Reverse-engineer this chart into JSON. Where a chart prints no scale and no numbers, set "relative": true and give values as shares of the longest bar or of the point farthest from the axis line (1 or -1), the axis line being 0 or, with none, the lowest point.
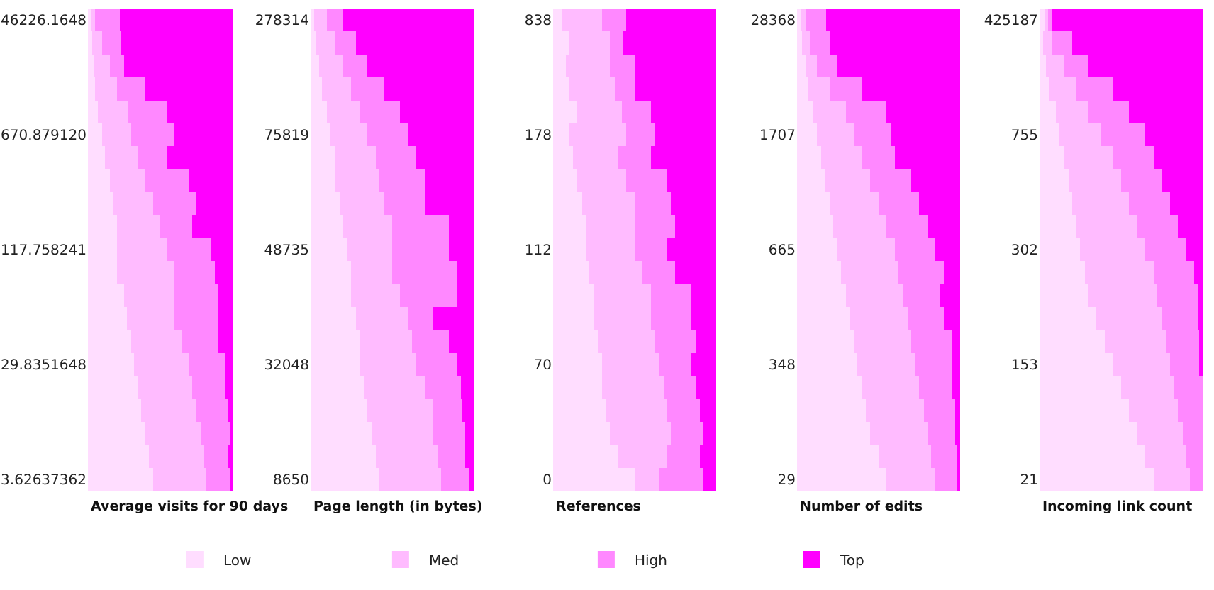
{
  "chart_data": [
    {
      "type": "bar",
      "orientation": "horizontal",
      "stacked": true,
      "relative": true,
      "xlabel": "Average visits for 90 days",
      "legend": "bottom",
      "categories": [
        "46226.1648",
        null,
        null,
        null,
        null,
        "670.879120",
        null,
        null,
        null,
        null,
        "117.758241",
        null,
        null,
        null,
        null,
        "29.8351648",
        null,
        null,
        null,
        null,
        "3.62637362"
      ],
      "series": [
        {
          "name": "Low",
          "color": "#ffddff",
          "values": [
            0.02,
            0.03,
            0.04,
            0.05,
            0.07,
            0.1,
            0.12,
            0.15,
            0.17,
            0.2,
            0.2,
            0.2,
            0.25,
            0.27,
            0.3,
            0.32,
            0.35,
            0.37,
            0.4,
            0.42,
            0.45
          ]
        },
        {
          "name": "Med",
          "color": "#ffbbff",
          "values": [
            0.03,
            0.07,
            0.11,
            0.15,
            0.21,
            0.2,
            0.23,
            0.25,
            0.28,
            0.3,
            0.35,
            0.4,
            0.35,
            0.33,
            0.35,
            0.38,
            0.37,
            0.38,
            0.38,
            0.38,
            0.37
          ]
        },
        {
          "name": "High",
          "color": "#ff88ff",
          "values": [
            0.17,
            0.13,
            0.1,
            0.2,
            0.27,
            0.3,
            0.2,
            0.3,
            0.3,
            0.22,
            0.3,
            0.28,
            0.3,
            0.3,
            0.25,
            0.25,
            0.23,
            0.22,
            0.2,
            0.17,
            0.16
          ]
        },
        {
          "name": "Top",
          "color": "#ff00ff",
          "values": [
            0.78,
            0.77,
            0.75,
            0.6,
            0.45,
            0.4,
            0.45,
            0.3,
            0.25,
            0.28,
            0.15,
            0.12,
            0.1,
            0.1,
            0.1,
            0.05,
            0.05,
            0.03,
            0.02,
            0.03,
            0.02
          ]
        }
      ]
    },
    {
      "type": "bar",
      "orientation": "horizontal",
      "stacked": true,
      "relative": true,
      "xlabel": "Page length (in bytes)",
      "categories": [
        "278314",
        null,
        null,
        null,
        null,
        "75819",
        null,
        null,
        null,
        null,
        "48735",
        null,
        null,
        null,
        null,
        "32048",
        null,
        null,
        null,
        null,
        "8650"
      ],
      "series": [
        {
          "color": "#ffddff",
          "values": [
            0.02,
            0.03,
            0.05,
            0.07,
            0.1,
            0.12,
            0.15,
            0.15,
            0.18,
            0.2,
            0.22,
            0.25,
            0.25,
            0.28,
            0.3,
            0.3,
            0.33,
            0.35,
            0.38,
            0.4,
            0.42
          ]
        },
        {
          "color": "#ffbbff",
          "values": [
            0.08,
            0.12,
            0.15,
            0.18,
            0.2,
            0.23,
            0.25,
            0.27,
            0.27,
            0.3,
            0.28,
            0.25,
            0.3,
            0.32,
            0.32,
            0.35,
            0.37,
            0.4,
            0.37,
            0.38,
            0.38
          ]
        },
        {
          "color": "#ff88ff",
          "values": [
            0.1,
            0.13,
            0.15,
            0.2,
            0.25,
            0.25,
            0.25,
            0.28,
            0.25,
            0.35,
            0.35,
            0.4,
            0.35,
            0.15,
            0.23,
            0.25,
            0.22,
            0.18,
            0.2,
            0.17,
            0.17
          ]
        },
        {
          "color": "#ff00ff",
          "values": [
            0.8,
            0.72,
            0.65,
            0.55,
            0.45,
            0.4,
            0.35,
            0.3,
            0.3,
            0.15,
            0.15,
            0.1,
            0.1,
            0.25,
            0.15,
            0.1,
            0.08,
            0.07,
            0.05,
            0.05,
            0.03
          ]
        }
      ]
    },
    {
      "type": "bar",
      "orientation": "horizontal",
      "stacked": true,
      "relative": true,
      "xlabel": "References",
      "categories": [
        "838",
        null,
        null,
        null,
        null,
        "178",
        null,
        null,
        null,
        null,
        "112",
        null,
        null,
        null,
        null,
        "70",
        null,
        null,
        null,
        null,
        "0"
      ],
      "series": [
        {
          "color": "#ffddff",
          "values": [
            0.05,
            0.1,
            0.08,
            0.1,
            0.15,
            0.1,
            0.12,
            0.15,
            0.18,
            0.2,
            0.2,
            0.22,
            0.25,
            0.25,
            0.28,
            0.3,
            0.3,
            0.32,
            0.35,
            0.4,
            0.5
          ]
        },
        {
          "color": "#ffbbff",
          "values": [
            0.25,
            0.25,
            0.27,
            0.28,
            0.27,
            0.35,
            0.28,
            0.3,
            0.32,
            0.3,
            0.3,
            0.33,
            0.35,
            0.35,
            0.34,
            0.35,
            0.38,
            0.38,
            0.37,
            0.3,
            0.15
          ]
        },
        {
          "color": "#ff88ff",
          "values": [
            0.15,
            0.08,
            0.15,
            0.12,
            0.18,
            0.17,
            0.2,
            0.25,
            0.22,
            0.25,
            0.2,
            0.2,
            0.25,
            0.25,
            0.26,
            0.2,
            0.2,
            0.2,
            0.2,
            0.2,
            0.27
          ]
        },
        {
          "color": "#ff00ff",
          "values": [
            0.55,
            0.57,
            0.5,
            0.5,
            0.4,
            0.38,
            0.4,
            0.3,
            0.28,
            0.25,
            0.3,
            0.25,
            0.15,
            0.15,
            0.12,
            0.15,
            0.12,
            0.1,
            0.08,
            0.1,
            0.08
          ]
        }
      ]
    },
    {
      "type": "bar",
      "orientation": "horizontal",
      "stacked": true,
      "relative": true,
      "xlabel": "Number of edits",
      "categories": [
        "28368",
        null,
        null,
        null,
        null,
        "1707",
        null,
        null,
        null,
        null,
        "665",
        null,
        null,
        null,
        null,
        "348",
        null,
        null,
        null,
        null,
        "29"
      ],
      "series": [
        {
          "color": "#ffddff",
          "values": [
            0.02,
            0.03,
            0.05,
            0.07,
            0.1,
            0.12,
            0.15,
            0.17,
            0.2,
            0.22,
            0.25,
            0.27,
            0.3,
            0.32,
            0.35,
            0.37,
            0.4,
            0.42,
            0.45,
            0.5,
            0.55
          ]
        },
        {
          "color": "#ffbbff",
          "values": [
            0.03,
            0.05,
            0.07,
            0.13,
            0.2,
            0.23,
            0.25,
            0.28,
            0.3,
            0.33,
            0.35,
            0.35,
            0.35,
            0.36,
            0.35,
            0.35,
            0.35,
            0.36,
            0.35,
            0.32,
            0.3
          ]
        },
        {
          "color": "#ff88ff",
          "values": [
            0.13,
            0.12,
            0.13,
            0.2,
            0.25,
            0.23,
            0.2,
            0.25,
            0.25,
            0.25,
            0.25,
            0.28,
            0.23,
            0.22,
            0.25,
            0.23,
            0.2,
            0.19,
            0.17,
            0.16,
            0.13
          ]
        },
        {
          "color": "#ff00ff",
          "values": [
            0.82,
            0.8,
            0.75,
            0.6,
            0.45,
            0.42,
            0.4,
            0.3,
            0.25,
            0.2,
            0.15,
            0.1,
            0.12,
            0.1,
            0.05,
            0.05,
            0.05,
            0.03,
            0.03,
            0.02,
            0.02
          ]
        }
      ]
    },
    {
      "type": "bar",
      "orientation": "horizontal",
      "stacked": true,
      "relative": true,
      "xlabel": "Incoming link count",
      "categories": [
        "425187",
        null,
        null,
        null,
        null,
        "755",
        null,
        null,
        null,
        null,
        "302",
        null,
        null,
        null,
        null,
        "153",
        null,
        null,
        null,
        null,
        "21"
      ],
      "series": [
        {
          "color": "#ffddff",
          "values": [
            0.03,
            0.02,
            0.04,
            0.06,
            0.1,
            0.12,
            0.15,
            0.18,
            0.2,
            0.22,
            0.25,
            0.28,
            0.3,
            0.35,
            0.4,
            0.45,
            0.5,
            0.55,
            0.6,
            0.65,
            0.7
          ]
        },
        {
          "color": "#ffbbff",
          "values": [
            0.02,
            0.06,
            0.11,
            0.16,
            0.2,
            0.26,
            0.3,
            0.32,
            0.35,
            0.38,
            0.4,
            0.42,
            0.42,
            0.4,
            0.38,
            0.35,
            0.32,
            0.3,
            0.28,
            0.25,
            0.22
          ]
        },
        {
          "color": "#ff88ff",
          "values": [
            0.03,
            0.12,
            0.15,
            0.23,
            0.25,
            0.27,
            0.25,
            0.25,
            0.25,
            0.25,
            0.25,
            0.25,
            0.25,
            0.22,
            0.2,
            0.18,
            0.18,
            0.15,
            0.12,
            0.1,
            0.08
          ]
        },
        {
          "color": "#ff00ff",
          "values": [
            0.92,
            0.8,
            0.7,
            0.55,
            0.45,
            0.35,
            0.3,
            0.25,
            0.2,
            0.15,
            0.1,
            0.05,
            0.03,
            0.03,
            0.02,
            0.02,
            0,
            0,
            0,
            0,
            0
          ]
        }
      ]
    }
  ]
}
